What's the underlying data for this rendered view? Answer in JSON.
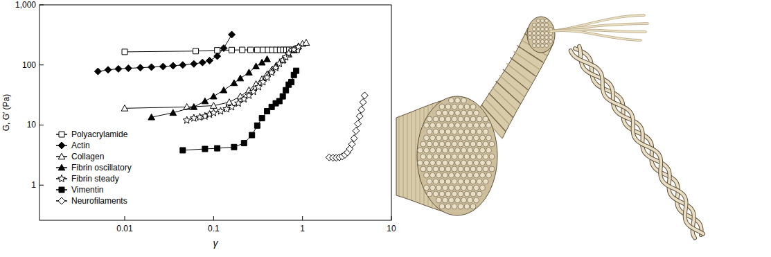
{
  "chart_data": {
    "type": "line",
    "x_label": "γ",
    "y_label": "G, G′ (Pa)",
    "log": true,
    "grid": false,
    "legend": "lower left",
    "xlim": [
      0.0011,
      10
    ],
    "ylim": [
      0.26,
      1000
    ],
    "xticks": [
      0.01,
      0.1,
      1,
      10
    ],
    "yticks": [
      1,
      10,
      100,
      {
        "value": 1000,
        "label": "1,000"
      }
    ],
    "series": [
      {
        "name": "Polyacrylamide",
        "color": "#000000",
        "marker": "open-square",
        "line_style": "solid",
        "x": [
          0.01,
          0.063,
          0.11,
          0.16,
          0.21,
          0.26,
          0.31,
          0.36,
          0.41,
          0.46,
          0.51,
          0.56,
          0.61,
          0.66,
          0.71,
          0.76,
          0.81,
          0.86
        ],
        "values": [
          165,
          170,
          175,
          177,
          178,
          178,
          178,
          178,
          178,
          178,
          178,
          178,
          178,
          178,
          178,
          178,
          178,
          178
        ]
      },
      {
        "name": "Actin",
        "color": "#000000",
        "marker": "filled-diamond",
        "line_style": "solid",
        "x": [
          0.005,
          0.0065,
          0.0085,
          0.011,
          0.015,
          0.02,
          0.027,
          0.035,
          0.045,
          0.06,
          0.075,
          0.09,
          0.11,
          0.13,
          0.16
        ],
        "values": [
          78,
          83,
          86,
          88,
          90,
          92,
          94,
          97,
          100,
          104,
          110,
          118,
          140,
          190,
          320
        ]
      },
      {
        "name": "Collagen",
        "color": "#000000",
        "marker": "open-triangle",
        "line_style": "solid",
        "x": [
          0.01,
          0.05,
          0.1,
          0.15,
          0.2,
          0.25,
          0.3,
          0.35,
          0.4,
          0.45,
          0.5,
          0.6,
          0.7,
          0.8,
          0.9,
          1.0,
          1.1
        ],
        "values": [
          19,
          20,
          21,
          24,
          30,
          38,
          48,
          58,
          70,
          82,
          95,
          120,
          150,
          180,
          205,
          225,
          235
        ]
      },
      {
        "name": "Fibrin oscillatory",
        "color": "#000000",
        "marker": "filled-triangle",
        "line_style": "solid",
        "x": [
          0.02,
          0.035,
          0.06,
          0.08,
          0.1,
          0.13,
          0.17,
          0.2,
          0.25,
          0.3,
          0.35,
          0.4
        ],
        "values": [
          13.5,
          16,
          20,
          25,
          30,
          38,
          50,
          60,
          75,
          95,
          110,
          125
        ]
      },
      {
        "name": "Fibrin steady",
        "color": "#000000",
        "marker": "open-star",
        "line_style": "solid",
        "x": [
          0.05,
          0.06,
          0.07,
          0.08,
          0.09,
          0.1,
          0.12,
          0.14,
          0.16,
          0.19,
          0.22,
          0.25,
          0.28,
          0.32,
          0.36,
          0.4,
          0.45,
          0.5,
          0.55,
          0.6,
          0.65,
          0.7,
          0.8,
          0.9
        ],
        "values": [
          12,
          13,
          13.5,
          14,
          15,
          16,
          17,
          18.5,
          20,
          23,
          27,
          31,
          36,
          43,
          52,
          62,
          75,
          90,
          105,
          120,
          135,
          155,
          180,
          200
        ]
      },
      {
        "name": "Vimentin",
        "color": "#000000",
        "marker": "filled-square",
        "line_style": "solid",
        "x": [
          0.045,
          0.08,
          0.11,
          0.17,
          0.22,
          0.27,
          0.31,
          0.35,
          0.4,
          0.45,
          0.5,
          0.55,
          0.6,
          0.65,
          0.7,
          0.75,
          0.8,
          0.85
        ],
        "values": [
          3.8,
          4.0,
          4.1,
          4.3,
          5.0,
          6.8,
          9.8,
          13,
          17,
          20,
          23,
          25,
          30,
          38,
          47,
          52,
          68,
          80
        ]
      },
      {
        "name": "Neurofilaments",
        "color": "#000000",
        "marker": "open-diamond",
        "line_style": "solid",
        "x": [
          2.0,
          2.2,
          2.4,
          2.6,
          2.8,
          3.0,
          3.2,
          3.4,
          3.6,
          3.8,
          4.0,
          4.2,
          4.4,
          4.6,
          4.8,
          5.0
        ],
        "values": [
          2.9,
          2.85,
          2.85,
          2.9,
          3.0,
          3.2,
          3.5,
          4.0,
          4.8,
          6,
          8,
          10.5,
          14,
          18,
          24,
          31
        ]
      }
    ]
  }
}
